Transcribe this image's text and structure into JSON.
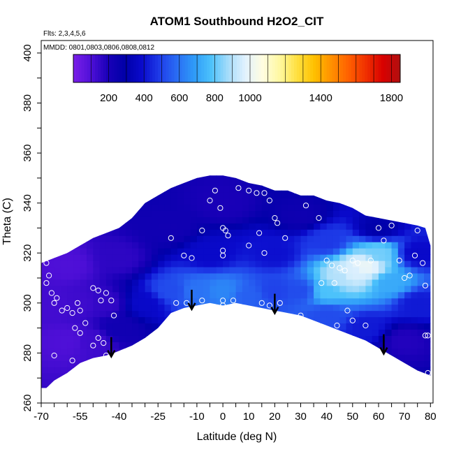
{
  "chart_data": {
    "type": "heatmap",
    "title": "ATOM1 Southbound H2O2_CIT",
    "flights_note": "Flts: 2,3,4,5,6",
    "dates_note": "MMDD: 0801,0803,0806,0808,0812",
    "xlabel": "Latitude (deg N)",
    "ylabel": "Theta (C)",
    "xlim": [
      -70,
      81
    ],
    "ylim": [
      260,
      405
    ],
    "x_ticks": [
      -70,
      -55,
      -40,
      -25,
      -10,
      0,
      10,
      20,
      30,
      40,
      50,
      60,
      70,
      80
    ],
    "y_ticks": [
      260,
      280,
      300,
      320,
      340,
      360,
      380,
      400
    ],
    "colorbar": {
      "range": [
        0,
        1850
      ],
      "tick_values": [
        200,
        400,
        600,
        800,
        1000,
        1400,
        1800
      ],
      "colors": [
        "#7a1fe8",
        "#5010d8",
        "#1a00b8",
        "#0000a8",
        "#0a0acc",
        "#1e3ce8",
        "#2a6cf4",
        "#2e9af8",
        "#4cc2fb",
        "#a6dcfa",
        "#e2f2fe",
        "#fffde0",
        "#fff8a0",
        "#ffe040",
        "#ffc000",
        "#ff9000",
        "#ff6000",
        "#f03000",
        "#d80000",
        "#b01010"
      ]
    },
    "surface_upper": [
      [
        -70,
        316
      ],
      [
        -65,
        318
      ],
      [
        -60,
        320
      ],
      [
        -55,
        323
      ],
      [
        -50,
        326
      ],
      [
        -45,
        328
      ],
      [
        -40,
        330
      ],
      [
        -35,
        334
      ],
      [
        -30,
        340
      ],
      [
        -25,
        343
      ],
      [
        -20,
        346
      ],
      [
        -15,
        348
      ],
      [
        -10,
        350
      ],
      [
        -5,
        351
      ],
      [
        0,
        351
      ],
      [
        5,
        350
      ],
      [
        10,
        348
      ],
      [
        15,
        347
      ],
      [
        20,
        345
      ],
      [
        25,
        345
      ],
      [
        30,
        343
      ],
      [
        35,
        343
      ],
      [
        40,
        341
      ],
      [
        45,
        340
      ],
      [
        50,
        338
      ],
      [
        55,
        335
      ],
      [
        60,
        334
      ],
      [
        65,
        333
      ],
      [
        70,
        332
      ],
      [
        75,
        331
      ],
      [
        78,
        330
      ],
      [
        80,
        323
      ]
    ],
    "surface_lower": [
      [
        -70,
        266
      ],
      [
        -68,
        266
      ],
      [
        -65,
        269
      ],
      [
        -60,
        272
      ],
      [
        -55,
        276
      ],
      [
        -50,
        278
      ],
      [
        -45,
        279
      ],
      [
        -42,
        280
      ],
      [
        -35,
        283
      ],
      [
        -30,
        286
      ],
      [
        -25,
        290
      ],
      [
        -20,
        296
      ],
      [
        -15,
        298
      ],
      [
        -10,
        299
      ],
      [
        -5,
        300
      ],
      [
        0,
        299
      ],
      [
        5,
        300
      ],
      [
        10,
        299
      ],
      [
        15,
        298
      ],
      [
        20,
        297
      ],
      [
        25,
        296
      ],
      [
        30,
        295
      ],
      [
        35,
        293
      ],
      [
        40,
        291
      ],
      [
        45,
        289
      ],
      [
        50,
        287
      ],
      [
        55,
        285
      ],
      [
        60,
        282
      ],
      [
        65,
        279
      ],
      [
        70,
        276
      ],
      [
        75,
        273
      ],
      [
        80,
        271
      ]
    ],
    "field_points": [
      {
        "x": -65,
        "y": 300,
        "v": 120
      },
      {
        "x": -55,
        "y": 300,
        "v": 130
      },
      {
        "x": -45,
        "y": 300,
        "v": 150
      },
      {
        "x": -60,
        "y": 285,
        "v": 100
      },
      {
        "x": -50,
        "y": 285,
        "v": 130
      },
      {
        "x": -40,
        "y": 290,
        "v": 230
      },
      {
        "x": -30,
        "y": 300,
        "v": 380
      },
      {
        "x": -20,
        "y": 305,
        "v": 520
      },
      {
        "x": -10,
        "y": 305,
        "v": 600
      },
      {
        "x": 0,
        "y": 305,
        "v": 640
      },
      {
        "x": 10,
        "y": 303,
        "v": 560
      },
      {
        "x": 20,
        "y": 305,
        "v": 500
      },
      {
        "x": 30,
        "y": 305,
        "v": 520
      },
      {
        "x": 40,
        "y": 305,
        "v": 780
      },
      {
        "x": 45,
        "y": 310,
        "v": 900
      },
      {
        "x": 50,
        "y": 312,
        "v": 960
      },
      {
        "x": 55,
        "y": 315,
        "v": 1000
      },
      {
        "x": 60,
        "y": 320,
        "v": 820
      },
      {
        "x": 65,
        "y": 308,
        "v": 720
      },
      {
        "x": 75,
        "y": 300,
        "v": 420
      },
      {
        "x": 70,
        "y": 285,
        "v": 180
      },
      {
        "x": 55,
        "y": 290,
        "v": 420
      },
      {
        "x": 40,
        "y": 295,
        "v": 520
      },
      {
        "x": -5,
        "y": 320,
        "v": 380
      },
      {
        "x": 20,
        "y": 320,
        "v": 400
      },
      {
        "x": 40,
        "y": 325,
        "v": 480
      },
      {
        "x": -40,
        "y": 318,
        "v": 160
      },
      {
        "x": -60,
        "y": 315,
        "v": 100
      },
      {
        "x": -20,
        "y": 330,
        "v": 230
      },
      {
        "x": 0,
        "y": 340,
        "v": 200
      },
      {
        "x": 30,
        "y": 335,
        "v": 240
      },
      {
        "x": 60,
        "y": 330,
        "v": 300
      },
      {
        "x": 75,
        "y": 320,
        "v": 380
      }
    ],
    "sample_points": [
      [
        -68,
        316
      ],
      [
        -67,
        311
      ],
      [
        -68,
        308
      ],
      [
        -66,
        304
      ],
      [
        -64,
        302
      ],
      [
        -65,
        300
      ],
      [
        -62,
        297
      ],
      [
        -60,
        298
      ],
      [
        -58,
        296
      ],
      [
        -56,
        300
      ],
      [
        -55,
        297
      ],
      [
        -53,
        292
      ],
      [
        -57,
        290
      ],
      [
        -48,
        305
      ],
      [
        -45,
        304
      ],
      [
        -50,
        306
      ],
      [
        -47,
        301
      ],
      [
        -43,
        301
      ],
      [
        -42,
        295
      ],
      [
        -55,
        288
      ],
      [
        -48,
        286
      ],
      [
        -46,
        284
      ],
      [
        -50,
        283
      ],
      [
        -45,
        279
      ],
      [
        -65,
        279
      ],
      [
        -58,
        277
      ],
      [
        -20,
        326
      ],
      [
        -15,
        319
      ],
      [
        -12,
        318
      ],
      [
        -8,
        329
      ],
      [
        -5,
        341
      ],
      [
        -3,
        345
      ],
      [
        -1,
        338
      ],
      [
        0,
        330
      ],
      [
        1,
        329
      ],
      [
        2,
        327
      ],
      [
        0,
        321
      ],
      [
        0,
        319
      ],
      [
        0,
        301
      ],
      [
        0,
        299
      ],
      [
        4,
        301
      ],
      [
        -8,
        301
      ],
      [
        -14,
        300
      ],
      [
        -18,
        300
      ],
      [
        6,
        346
      ],
      [
        10,
        345
      ],
      [
        13,
        344
      ],
      [
        16,
        344
      ],
      [
        18,
        341
      ],
      [
        20,
        334
      ],
      [
        21,
        332
      ],
      [
        24,
        326
      ],
      [
        14,
        328
      ],
      [
        10,
        323
      ],
      [
        16,
        320
      ],
      [
        22,
        300
      ],
      [
        15,
        300
      ],
      [
        18,
        299
      ],
      [
        30,
        295
      ],
      [
        36,
        291
      ],
      [
        44,
        291
      ],
      [
        55,
        291
      ],
      [
        28,
        345
      ],
      [
        32,
        339
      ],
      [
        37,
        334
      ],
      [
        40,
        317
      ],
      [
        42,
        315
      ],
      [
        45,
        314
      ],
      [
        47,
        313
      ],
      [
        50,
        317
      ],
      [
        52,
        316
      ],
      [
        38,
        308
      ],
      [
        43,
        308
      ],
      [
        48,
        297
      ],
      [
        50,
        293
      ],
      [
        57,
        317
      ],
      [
        60,
        330
      ],
      [
        62,
        325
      ],
      [
        65,
        331
      ],
      [
        68,
        317
      ],
      [
        70,
        310
      ],
      [
        72,
        311
      ],
      [
        74,
        319
      ],
      [
        75,
        329
      ],
      [
        77,
        316
      ],
      [
        78,
        307
      ],
      [
        78,
        287
      ],
      [
        79,
        287
      ],
      [
        79,
        272
      ]
    ],
    "arrow_latitudes": [
      -43,
      -12,
      20,
      62
    ]
  }
}
